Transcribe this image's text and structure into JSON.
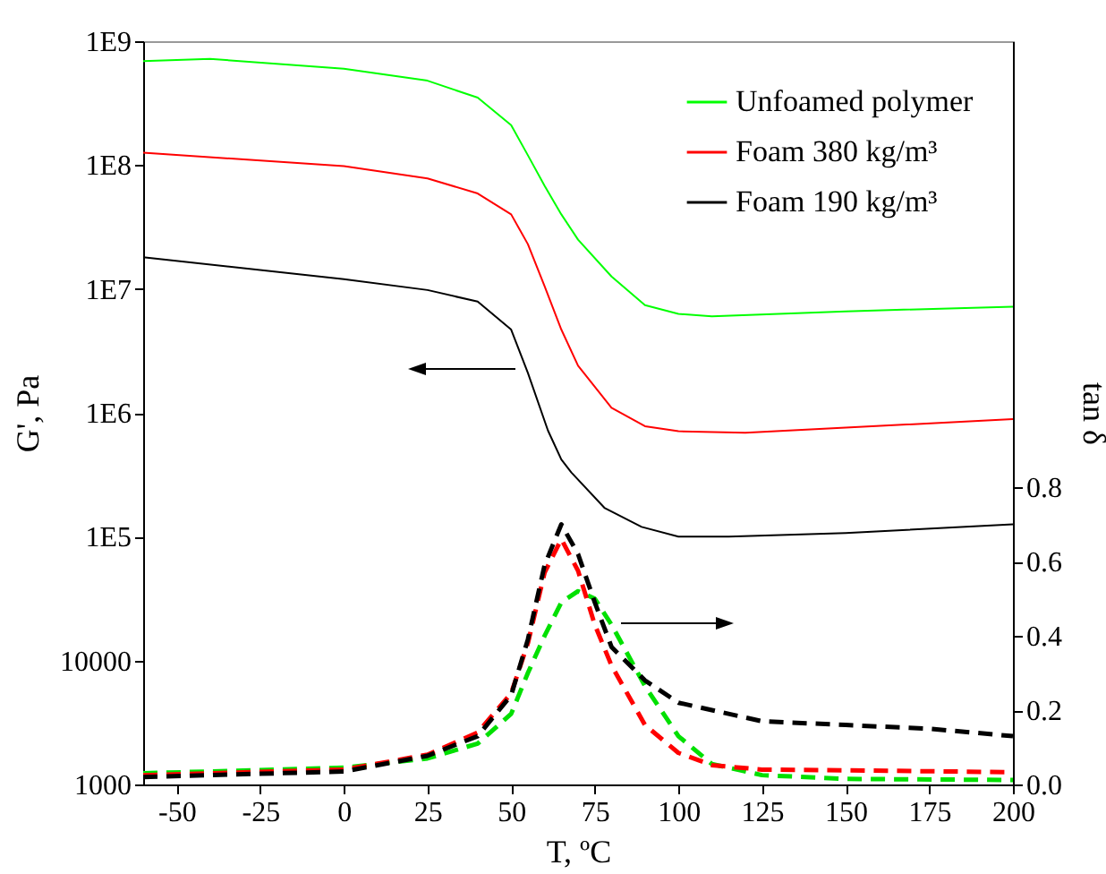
{
  "chart_data": {
    "type": "line",
    "xlabel": "T, ºC",
    "ylabel": "G', Pa",
    "y2label": "tan δ",
    "log": "y",
    "grid": false,
    "legend": "top right",
    "marker": "none",
    "xlim": [
      -60,
      200
    ],
    "xticks": [
      -50,
      -25,
      0,
      25,
      50,
      75,
      100,
      125,
      150,
      175,
      200
    ],
    "ylim": [
      1000,
      1000000000
    ],
    "yticks": [
      {
        "value": 1000,
        "label": "1000"
      },
      {
        "value": 10000,
        "label": "10000"
      },
      {
        "value": 100000,
        "label": "1E5"
      },
      {
        "value": 1000000,
        "label": "1E6"
      },
      {
        "value": 10000000,
        "label": "1E7"
      },
      {
        "value": 100000000,
        "label": "1E8"
      },
      {
        "value": 1000000000,
        "label": "1E9"
      }
    ],
    "y2lim": [
      0,
      2
    ],
    "y2ticks": [
      {
        "value": 0,
        "label": "0.0"
      },
      0.2,
      0.4,
      0.6,
      0.8
    ],
    "series": [
      {
        "name": "Unfoamed polymer",
        "color": "#00ff00",
        "line_style": "solid",
        "x": [
          -60,
          -40,
          0,
          25,
          40,
          50,
          55,
          60,
          65,
          70,
          80,
          90,
          100,
          110,
          150,
          200
        ],
        "values": [
          690000000,
          720000000,
          600000000,
          480000000,
          350000000,
          210000000,
          120000000,
          68000000,
          40000000,
          25000000,
          12600000,
          7400000,
          6300000,
          6000000,
          6600000,
          7200000
        ]
      },
      {
        "name": "Foam 380 kg/m³",
        "color": "#ff0000",
        "line_style": "solid",
        "x": [
          -60,
          0,
          25,
          40,
          50,
          55,
          60,
          65,
          70,
          80,
          90,
          100,
          120,
          150,
          200
        ],
        "values": [
          126000000,
          98000000,
          78000000,
          59000000,
          40000000,
          23000000,
          10500000,
          4700000,
          2400000,
          1100000,
          780000,
          710000,
          690000,
          760000,
          890000
        ]
      },
      {
        "name": "Foam 190 kg/m³",
        "color": "#000000",
        "line_style": "solid",
        "x": [
          -60,
          0,
          25,
          40,
          50,
          55,
          61,
          65,
          68,
          78,
          89,
          100,
          115,
          150,
          200
        ],
        "values": [
          18000000,
          12000000,
          9800000,
          7900000,
          4700000,
          2100000,
          720000,
          420000,
          330000,
          170000,
          120000,
          100000,
          100000,
          107000,
          126000
        ]
      },
      {
        "color": "#00e000",
        "axis": "y2",
        "line_style": "dashed",
        "x": [
          -60,
          0,
          25,
          40,
          50,
          55,
          60,
          65,
          70,
          75,
          80,
          90,
          100,
          110,
          125,
          150,
          200
        ],
        "values": [
          0.03,
          0.045,
          0.07,
          0.11,
          0.19,
          0.3,
          0.4,
          0.49,
          0.52,
          0.5,
          0.43,
          0.265,
          0.13,
          0.055,
          0.025,
          0.015,
          0.012
        ]
      },
      {
        "color": "#ff0000",
        "axis": "y2",
        "line_style": "dashed",
        "x": [
          -60,
          0,
          25,
          40,
          50,
          55,
          60,
          65,
          70,
          75,
          80,
          90,
          100,
          110,
          125,
          150,
          200
        ],
        "values": [
          0.025,
          0.04,
          0.08,
          0.14,
          0.245,
          0.38,
          0.57,
          0.66,
          0.575,
          0.43,
          0.32,
          0.16,
          0.085,
          0.052,
          0.04,
          0.038,
          0.033
        ]
      },
      {
        "color": "#000000",
        "axis": "y2",
        "line_style": "dashed",
        "x": [
          -60,
          0,
          25,
          40,
          50,
          55,
          60,
          65,
          70,
          75,
          80,
          90,
          100,
          125,
          150,
          175,
          200
        ],
        "values": [
          0.02,
          0.035,
          0.077,
          0.13,
          0.24,
          0.39,
          0.59,
          0.7,
          0.62,
          0.49,
          0.37,
          0.28,
          0.22,
          0.17,
          0.16,
          0.15,
          0.13
        ]
      }
    ]
  }
}
